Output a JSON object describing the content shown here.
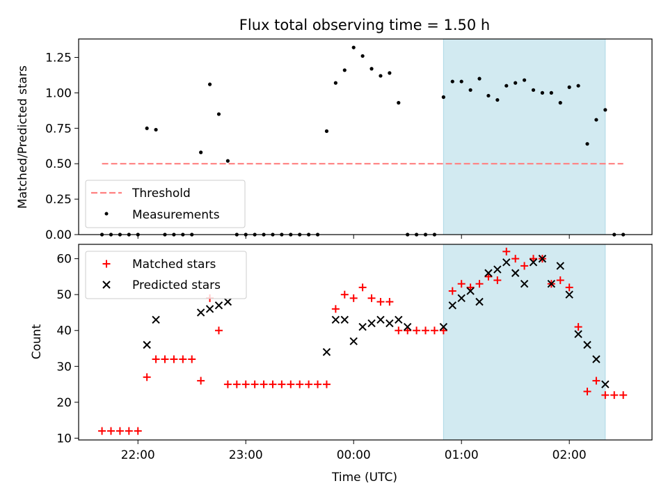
{
  "colors": {
    "shade": "#add8e6",
    "threshold": "#ff8080",
    "measurement": "#000000",
    "matched": "#ff0000",
    "predicted": "#000000"
  },
  "chart_data": [
    {
      "type": "scatter",
      "title": "Flux total observing time = 1.50 h",
      "xlabel": "",
      "ylabel": "Matched/Predicted stars",
      "ylim": [
        0,
        1.38
      ],
      "yticks": [
        "0.00",
        "0.25",
        "0.50",
        "0.75",
        "1.00",
        "1.25"
      ],
      "xlim": [
        "21:27",
        "02:46"
      ],
      "shaded_region": [
        "00:50",
        "02:20"
      ],
      "legend_position": "lower-left",
      "threshold": {
        "name": "Threshold",
        "value": 0.5,
        "x_range": [
          "21:40",
          "02:30"
        ]
      },
      "series": [
        {
          "name": "Measurements",
          "x": [
            "21:40",
            "21:45",
            "21:50",
            "21:55",
            "22:00",
            "22:05",
            "22:10",
            "22:15",
            "22:20",
            "22:25",
            "22:30",
            "22:35",
            "22:40",
            "22:45",
            "22:50",
            "22:55",
            "23:00",
            "23:05",
            "23:10",
            "23:15",
            "23:20",
            "23:25",
            "23:30",
            "23:35",
            "23:40",
            "23:45",
            "23:50",
            "23:55",
            "00:00",
            "00:05",
            "00:10",
            "00:15",
            "00:20",
            "00:25",
            "00:30",
            "00:35",
            "00:40",
            "00:45",
            "00:50",
            "00:55",
            "01:00",
            "01:05",
            "01:10",
            "01:15",
            "01:20",
            "01:25",
            "01:30",
            "01:35",
            "01:40",
            "01:45",
            "01:50",
            "01:55",
            "02:00",
            "02:05",
            "02:10",
            "02:15",
            "02:20",
            "02:25",
            "02:30"
          ],
          "y": [
            0,
            0,
            0,
            0,
            0,
            0.75,
            0.74,
            0,
            0,
            0,
            0,
            0.58,
            1.06,
            0.85,
            0.52,
            0,
            0,
            0,
            0,
            0,
            0,
            0,
            0,
            0,
            0,
            0.73,
            1.07,
            1.16,
            1.32,
            1.26,
            1.17,
            1.12,
            1.14,
            0.93,
            0,
            0,
            0,
            0,
            0.97,
            1.08,
            1.08,
            1.02,
            1.1,
            0.98,
            0.95,
            1.05,
            1.07,
            1.09,
            1.02,
            1.0,
            1.0,
            0.93,
            1.04,
            1.05,
            0.64,
            0.81,
            0.88,
            0,
            0
          ]
        }
      ]
    },
    {
      "type": "scatter",
      "title": "",
      "xlabel": "Time (UTC)",
      "ylabel": "Count",
      "ylim": [
        9.5,
        64
      ],
      "yticks": [
        "10",
        "20",
        "30",
        "40",
        "50",
        "60"
      ],
      "xlim": [
        "21:27",
        "02:46"
      ],
      "xticks": [
        "22:00",
        "23:00",
        "00:00",
        "01:00",
        "02:00"
      ],
      "shaded_region": [
        "00:50",
        "02:20"
      ],
      "legend_position": "upper-left",
      "series": [
        {
          "name": "Matched stars",
          "marker": "plus",
          "x": [
            "21:40",
            "21:45",
            "21:50",
            "21:55",
            "22:00",
            "22:05",
            "22:10",
            "22:15",
            "22:20",
            "22:25",
            "22:30",
            "22:35",
            "22:40",
            "22:45",
            "22:50",
            "22:55",
            "23:00",
            "23:05",
            "23:10",
            "23:15",
            "23:20",
            "23:25",
            "23:30",
            "23:35",
            "23:40",
            "23:45",
            "23:50",
            "23:55",
            "00:00",
            "00:05",
            "00:10",
            "00:15",
            "00:20",
            "00:25",
            "00:30",
            "00:35",
            "00:40",
            "00:45",
            "00:50",
            "00:55",
            "01:00",
            "01:05",
            "01:10",
            "01:15",
            "01:20",
            "01:25",
            "01:30",
            "01:35",
            "01:40",
            "01:45",
            "01:50",
            "01:55",
            "02:00",
            "02:05",
            "02:10",
            "02:15",
            "02:20",
            "02:25",
            "02:30"
          ],
          "y": [
            12,
            12,
            12,
            12,
            12,
            27,
            32,
            32,
            32,
            32,
            32,
            26,
            49,
            40,
            25,
            25,
            25,
            25,
            25,
            25,
            25,
            25,
            25,
            25,
            25,
            25,
            46,
            50,
            49,
            52,
            49,
            48,
            48,
            40,
            40,
            40,
            40,
            40,
            40,
            51,
            53,
            52,
            53,
            55,
            54,
            62,
            60,
            58,
            60,
            60,
            53,
            54,
            52,
            41,
            23,
            26,
            22,
            22,
            22
          ]
        },
        {
          "name": "Predicted stars",
          "marker": "x",
          "x": [
            "22:05",
            "22:10",
            "22:35",
            "22:40",
            "22:45",
            "22:50",
            "23:45",
            "23:50",
            "23:55",
            "00:00",
            "00:05",
            "00:10",
            "00:15",
            "00:20",
            "00:25",
            "00:30",
            "00:50",
            "00:55",
            "01:00",
            "01:05",
            "01:10",
            "01:15",
            "01:20",
            "01:25",
            "01:30",
            "01:35",
            "01:40",
            "01:45",
            "01:50",
            "01:55",
            "02:00",
            "02:05",
            "02:10",
            "02:15",
            "02:20"
          ],
          "y": [
            36,
            43,
            45,
            46,
            47,
            48,
            34,
            43,
            43,
            37,
            41,
            42,
            43,
            42,
            43,
            41,
            41,
            47,
            49,
            51,
            48,
            56,
            57,
            59,
            56,
            53,
            59,
            60,
            53,
            58,
            50,
            39,
            36,
            32,
            25
          ]
        }
      ]
    }
  ]
}
